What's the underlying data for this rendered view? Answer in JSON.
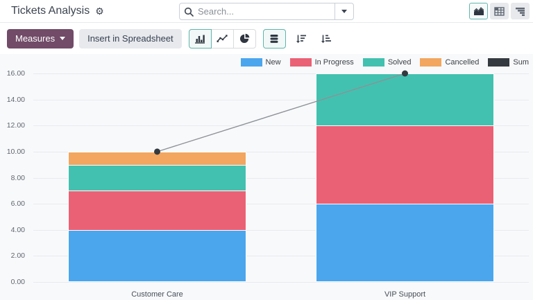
{
  "header": {
    "title": "Tickets Analysis",
    "search": {
      "placeholder": "Search..."
    },
    "view_switcher": {
      "graph_active": true,
      "pivot_active": false,
      "cohort_active": false
    }
  },
  "icons": {
    "gear": "⚙"
  },
  "toolbar": {
    "measures_label": "Measures",
    "insert_label": "Insert in Spreadsheet",
    "chart_type_active": "bar",
    "stacked_active": true
  },
  "chart_data": {
    "type": "bar",
    "stacked": true,
    "title": "",
    "xlabel": "",
    "ylabel": "",
    "categories": [
      "Customer Care",
      "VIP Support"
    ],
    "series": [
      {
        "name": "New",
        "color": "#4BA6EE",
        "values": [
          4,
          6
        ]
      },
      {
        "name": "In Progress",
        "color": "#EA6175",
        "values": [
          3,
          6
        ]
      },
      {
        "name": "Solved",
        "color": "#43C1B0",
        "values": [
          2,
          4
        ]
      },
      {
        "name": "Cancelled",
        "color": "#F2A65F",
        "values": [
          1,
          0
        ]
      },
      {
        "name": "Sum",
        "color": "#343A40",
        "values": [
          10,
          16
        ],
        "line": true
      }
    ],
    "ylim": [
      0,
      16
    ],
    "ytick_step": 2,
    "ytick_format_decimals": 2,
    "grid": true,
    "legend_position": "top-right",
    "line_stroke": "#8d9196"
  }
}
